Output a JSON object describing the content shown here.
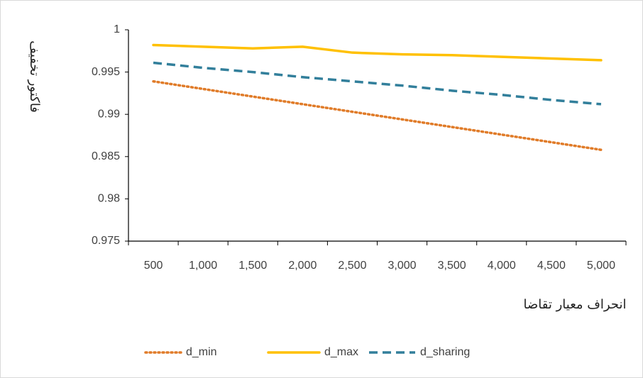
{
  "chart_data": {
    "type": "line",
    "y_label": "فاکتور تخفیف",
    "x_label": "انحراف معیار تقاضا",
    "categories": [
      "500",
      "1,000",
      "1,500",
      "2,000",
      "2,500",
      "3,000",
      "3,500",
      "4,000",
      "4,500",
      "5,000"
    ],
    "series": [
      {
        "name": "d_min",
        "color": "#e07b28",
        "style": "dotted",
        "values": [
          0.9939,
          0.993,
          0.9921,
          0.9912,
          0.9903,
          0.9894,
          0.9885,
          0.9876,
          0.9867,
          0.9858
        ]
      },
      {
        "name": "d_max",
        "color": "#ffc000",
        "style": "solid",
        "values": [
          0.9982,
          0.998,
          0.9978,
          0.998,
          0.9973,
          0.9971,
          0.997,
          0.9968,
          0.9966,
          0.9964
        ]
      },
      {
        "name": "d_sharing",
        "color": "#327f9b",
        "style": "dashed",
        "values": [
          0.9961,
          0.9955,
          0.995,
          0.9944,
          0.9939,
          0.9934,
          0.9928,
          0.9923,
          0.9917,
          0.9912
        ]
      }
    ],
    "ylim": [
      0.975,
      1
    ],
    "yticks": [
      0.975,
      0.98,
      0.985,
      0.99,
      0.995,
      1
    ],
    "grid": false,
    "legend": "bottom"
  }
}
